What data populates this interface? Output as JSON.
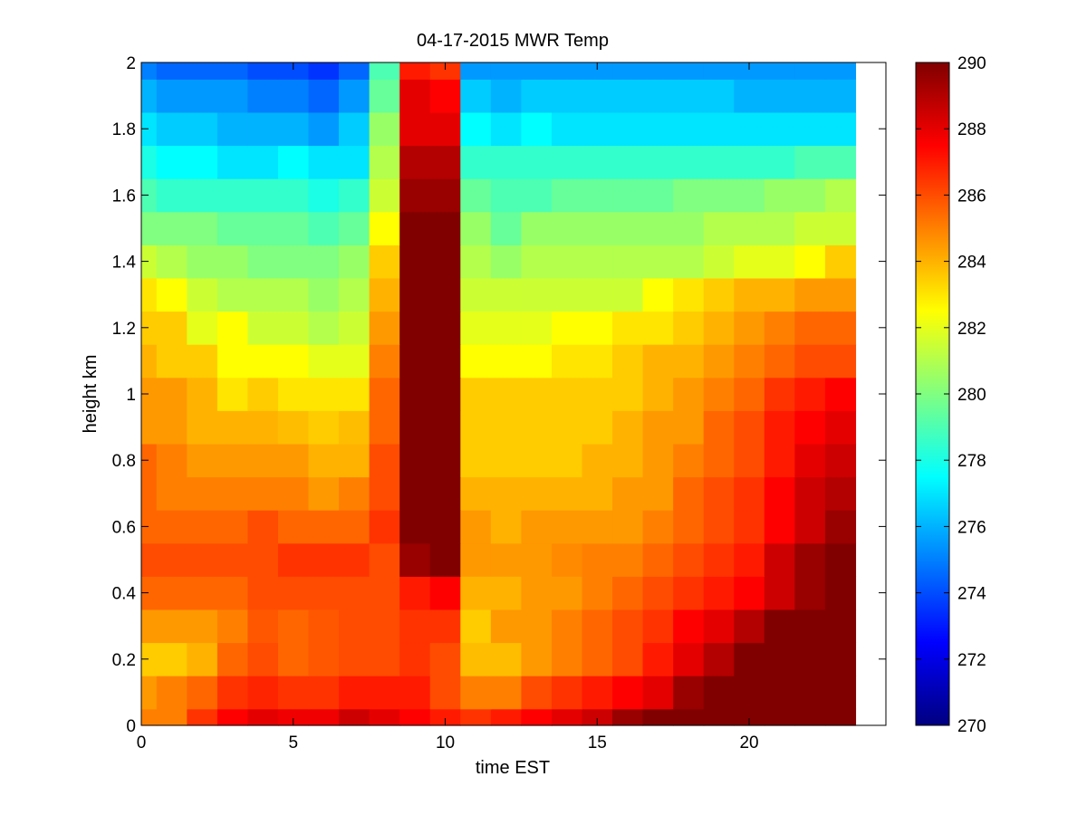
{
  "chart_data": {
    "type": "heatmap",
    "title": "04-17-2015 MWR Temp",
    "xlabel": "time EST",
    "ylabel": "height km",
    "xlim": [
      0,
      24.5
    ],
    "ylim": [
      0,
      2
    ],
    "x_ticks": [
      0,
      5,
      10,
      15,
      20
    ],
    "x_tick_labels": [
      "0",
      "5",
      "10",
      "15",
      "20"
    ],
    "y_ticks": [
      0,
      0.2,
      0.4,
      0.6,
      0.8,
      1,
      1.2,
      1.4,
      1.6,
      1.8,
      2
    ],
    "y_tick_labels": [
      "0",
      "0.2",
      "0.4",
      "0.6",
      "0.8",
      "1",
      "1.2",
      "1.4",
      "1.6",
      "1.8",
      "2"
    ],
    "colormap": "jet",
    "clim": [
      270,
      290
    ],
    "colorbar_ticks": [
      270,
      272,
      274,
      276,
      278,
      280,
      282,
      284,
      286,
      288,
      290
    ],
    "colorbar_tick_labels": [
      "270",
      "272",
      "274",
      "276",
      "278",
      "280",
      "282",
      "284",
      "286",
      "288",
      "290"
    ],
    "grid": false,
    "time_hours": [
      0,
      1,
      2,
      3,
      4,
      5,
      6,
      7,
      8,
      9,
      10,
      11,
      12,
      13,
      14,
      15,
      16,
      17,
      18,
      19,
      20,
      21,
      22,
      23
    ],
    "time_cell_width_hours": 1,
    "height_km": [
      0,
      0.1,
      0.2,
      0.3,
      0.4,
      0.5,
      0.6,
      0.7,
      0.8,
      0.9,
      1.0,
      1.1,
      1.2,
      1.3,
      1.4,
      1.5,
      1.6,
      1.7,
      1.8,
      1.9,
      2.0
    ],
    "height_cell_height_km": 0.1,
    "temperature_K": [
      [
        285.0,
        285.0,
        286.5,
        287.5,
        288.0,
        287.8,
        287.8,
        288.5,
        288.0,
        287.5,
        287.0,
        286.5,
        287.0,
        287.5,
        288.0,
        288.5,
        289.5,
        290.0,
        290.0,
        290.0,
        290.0,
        290.0,
        290.0,
        290.0
      ],
      [
        284.5,
        285.0,
        285.5,
        286.5,
        286.8,
        286.5,
        286.5,
        287.0,
        287.0,
        287.0,
        286.0,
        285.0,
        285.0,
        286.0,
        286.5,
        287.0,
        287.5,
        288.0,
        289.5,
        290.0,
        290.0,
        290.0,
        290.0,
        290.0
      ],
      [
        283.5,
        283.5,
        284.0,
        285.5,
        286.0,
        285.5,
        285.8,
        286.0,
        286.0,
        286.5,
        286.0,
        283.8,
        283.8,
        284.5,
        285.0,
        285.5,
        286.0,
        287.0,
        288.0,
        289.0,
        290.0,
        290.0,
        290.0,
        290.0
      ],
      [
        284.5,
        284.5,
        284.5,
        285.0,
        285.8,
        285.5,
        285.8,
        286.0,
        286.0,
        286.5,
        286.5,
        283.5,
        284.5,
        284.5,
        285.0,
        285.5,
        286.0,
        286.5,
        287.5,
        288.0,
        289.0,
        290.0,
        290.0,
        290.0
      ],
      [
        285.5,
        285.5,
        285.5,
        285.5,
        286.0,
        286.0,
        286.0,
        286.0,
        286.0,
        287.0,
        287.5,
        284.0,
        284.0,
        284.5,
        284.5,
        285.0,
        285.5,
        286.0,
        286.5,
        287.0,
        287.5,
        288.5,
        289.5,
        290.0
      ],
      [
        286.0,
        286.0,
        286.0,
        286.0,
        286.0,
        286.5,
        286.5,
        286.5,
        286.0,
        289.5,
        290.0,
        284.5,
        284.5,
        284.5,
        284.8,
        285.0,
        285.0,
        285.5,
        286.0,
        286.5,
        287.0,
        288.5,
        289.5,
        290.0
      ],
      [
        285.5,
        285.5,
        285.5,
        285.5,
        286.0,
        285.5,
        285.5,
        285.5,
        286.5,
        290.0,
        290.0,
        284.5,
        284.0,
        284.5,
        284.5,
        284.5,
        284.5,
        285.0,
        285.5,
        286.0,
        286.5,
        287.5,
        288.5,
        289.5
      ],
      [
        285.5,
        285.0,
        285.0,
        285.0,
        285.0,
        285.0,
        284.5,
        285.0,
        286.0,
        290.0,
        290.0,
        284.0,
        284.0,
        284.0,
        284.0,
        284.0,
        284.5,
        284.5,
        285.5,
        286.0,
        286.5,
        287.5,
        288.5,
        289.0
      ],
      [
        285.5,
        285.0,
        284.5,
        284.5,
        284.5,
        284.5,
        284.0,
        284.0,
        286.0,
        290.0,
        290.0,
        283.5,
        283.5,
        283.5,
        283.5,
        284.0,
        284.0,
        284.5,
        285.0,
        285.5,
        286.0,
        287.0,
        288.0,
        288.5
      ],
      [
        284.5,
        284.5,
        284.0,
        284.0,
        284.0,
        283.8,
        283.5,
        283.8,
        285.5,
        290.0,
        290.0,
        283.5,
        283.5,
        283.5,
        283.5,
        283.5,
        284.0,
        284.5,
        284.5,
        285.5,
        286.0,
        287.0,
        287.5,
        288.0
      ],
      [
        284.5,
        284.5,
        284.0,
        283.0,
        283.5,
        283.0,
        283.0,
        283.0,
        285.5,
        290.0,
        290.0,
        283.5,
        283.5,
        283.5,
        283.5,
        283.5,
        283.5,
        284.0,
        284.5,
        285.0,
        285.5,
        286.5,
        287.0,
        287.5
      ],
      [
        284.0,
        283.5,
        283.5,
        282.5,
        282.5,
        282.5,
        282.0,
        282.0,
        285.0,
        290.0,
        290.0,
        282.5,
        282.5,
        282.5,
        283.0,
        283.0,
        283.5,
        284.0,
        284.0,
        284.5,
        285.0,
        285.5,
        286.0,
        286.0
      ],
      [
        283.5,
        283.5,
        282.0,
        282.5,
        281.5,
        281.5,
        281.0,
        281.5,
        284.5,
        290.0,
        290.0,
        282.0,
        282.0,
        282.0,
        282.5,
        282.5,
        283.0,
        283.0,
        283.5,
        284.0,
        284.5,
        285.0,
        285.5,
        285.5
      ],
      [
        283.0,
        282.5,
        281.5,
        281.0,
        281.0,
        281.0,
        280.5,
        281.0,
        284.0,
        290.0,
        290.0,
        281.5,
        281.5,
        281.5,
        281.5,
        281.5,
        281.5,
        282.5,
        283.0,
        283.5,
        284.0,
        284.0,
        284.5,
        284.5
      ],
      [
        281.5,
        281.0,
        280.5,
        280.5,
        280.0,
        280.0,
        280.0,
        280.5,
        283.5,
        290.0,
        290.0,
        281.0,
        280.5,
        281.0,
        281.0,
        281.0,
        281.0,
        281.0,
        281.0,
        281.5,
        282.0,
        282.0,
        282.5,
        283.5
      ],
      [
        280.0,
        280.0,
        280.0,
        279.5,
        279.5,
        279.5,
        279.0,
        279.5,
        282.5,
        290.0,
        290.0,
        280.5,
        279.5,
        280.5,
        280.5,
        280.5,
        280.5,
        280.5,
        280.5,
        281.0,
        281.0,
        281.0,
        281.5,
        281.5
      ],
      [
        279.0,
        278.5,
        278.5,
        278.5,
        278.5,
        278.5,
        278.0,
        278.5,
        281.5,
        289.5,
        289.5,
        279.5,
        279.0,
        279.0,
        279.5,
        279.5,
        279.5,
        279.5,
        280.0,
        280.0,
        280.0,
        280.5,
        280.5,
        281.0
      ],
      [
        278.0,
        277.5,
        277.5,
        277.0,
        277.0,
        277.5,
        277.0,
        277.0,
        281.0,
        289.0,
        289.0,
        278.5,
        278.5,
        278.5,
        278.5,
        278.5,
        278.5,
        278.5,
        278.5,
        278.5,
        278.5,
        278.5,
        279.0,
        279.0
      ],
      [
        277.0,
        276.5,
        276.5,
        276.0,
        276.0,
        276.0,
        275.5,
        276.5,
        280.5,
        288.0,
        288.0,
        277.5,
        277.0,
        277.5,
        277.0,
        277.0,
        277.0,
        277.0,
        277.0,
        277.0,
        277.0,
        277.0,
        277.0,
        277.0
      ],
      [
        276.0,
        275.5,
        275.5,
        275.5,
        275.0,
        275.0,
        274.5,
        275.5,
        279.5,
        288.0,
        287.5,
        276.5,
        276.0,
        276.5,
        276.5,
        276.5,
        276.5,
        276.5,
        276.5,
        276.5,
        276.0,
        276.0,
        276.0,
        276.0
      ],
      [
        275.0,
        274.5,
        274.5,
        274.5,
        274.0,
        274.0,
        273.5,
        274.5,
        279.0,
        287.0,
        286.5,
        275.5,
        275.5,
        275.5,
        275.5,
        275.5,
        275.5,
        275.5,
        275.5,
        275.5,
        275.5,
        275.5,
        275.5,
        275.5
      ]
    ]
  }
}
